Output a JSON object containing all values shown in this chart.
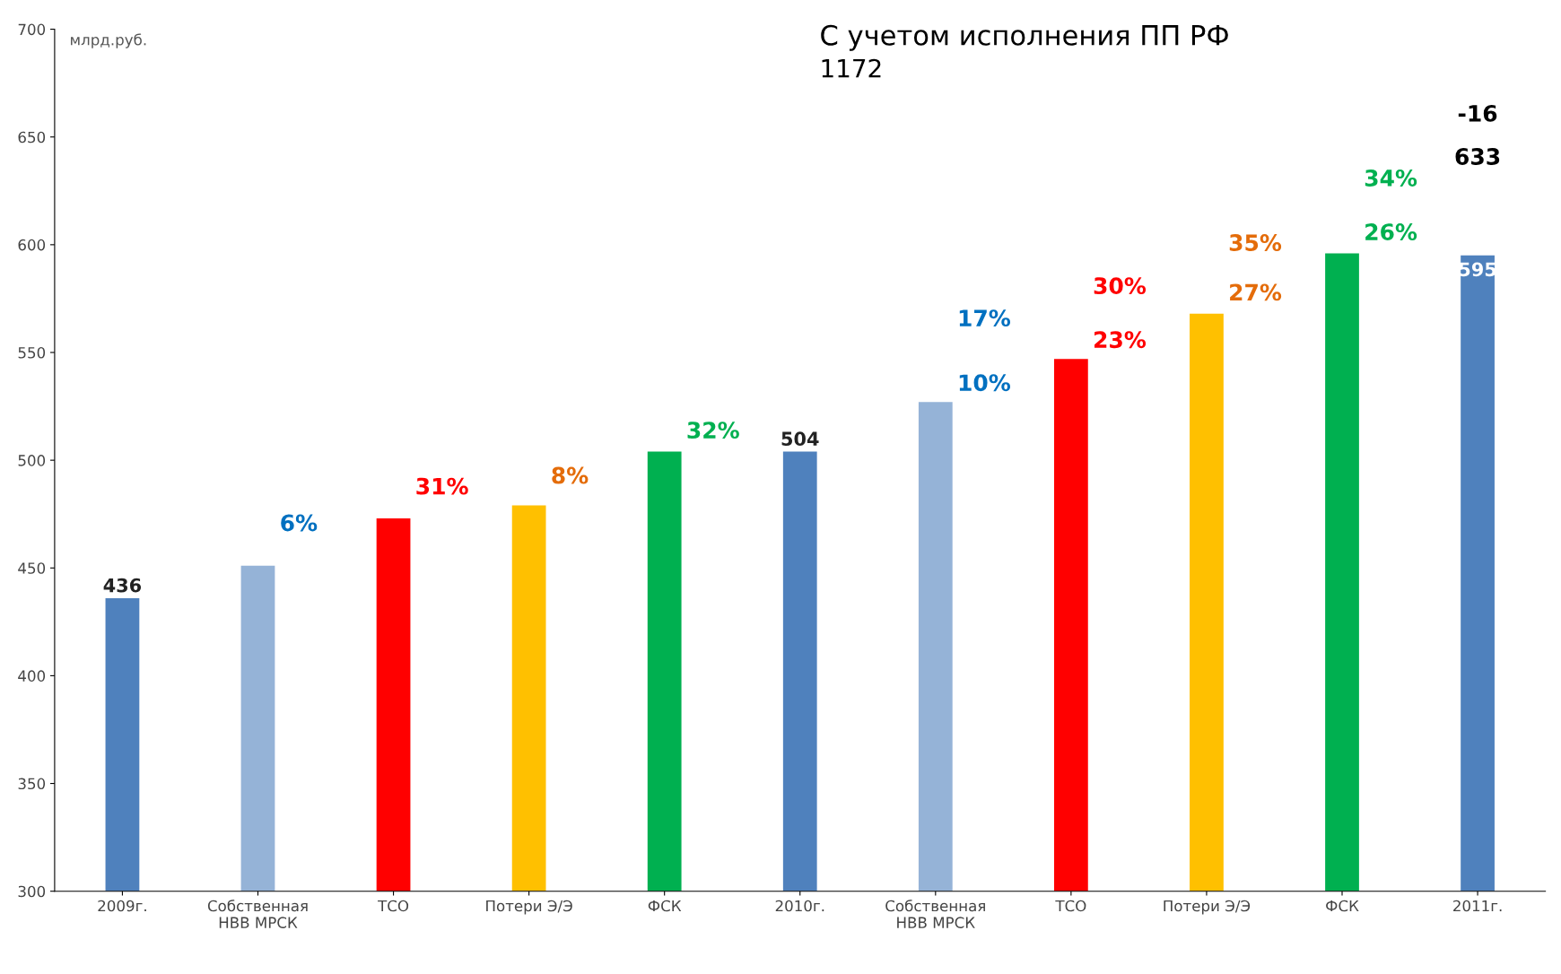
{
  "chart_data": {
    "type": "bar",
    "title": "С учетом исполнения ПП РФ",
    "subtitle": "1172",
    "ylabel": "млрд.руб.",
    "categories": [
      "2009г.",
      "Собственная НВВ МРСК",
      "ТСО",
      "Потери Э/Э",
      "ФСК",
      "2010г.",
      "Собственная НВВ МРСК",
      "ТСО",
      "Потери Э/Э",
      "ФСК",
      "2011г."
    ],
    "values": [
      436,
      451,
      473,
      479,
      504,
      504,
      527,
      547,
      568,
      596,
      595
    ],
    "colors": [
      "#4f81bd",
      "#95b3d7",
      "#ff0000",
      "#ffc000",
      "#00b050",
      "#4f81bd",
      "#95b3d7",
      "#ff0000",
      "#ffc000",
      "#00b050",
      "#4f81bd"
    ],
    "value_labels": [
      "436",
      null,
      null,
      null,
      null,
      "504",
      null,
      null,
      null,
      null,
      "595"
    ],
    "annotations": [
      "6%",
      "31%",
      "8%",
      "32%",
      "17%",
      "10%",
      "30%",
      "23%",
      "35%",
      "27%",
      "34%",
      "26%",
      "633",
      "-16"
    ],
    "ylim": [
      300,
      700
    ],
    "yticks": [
      300,
      350,
      400,
      450,
      500,
      550,
      600,
      650,
      700
    ],
    "grid": false,
    "legend": false
  }
}
